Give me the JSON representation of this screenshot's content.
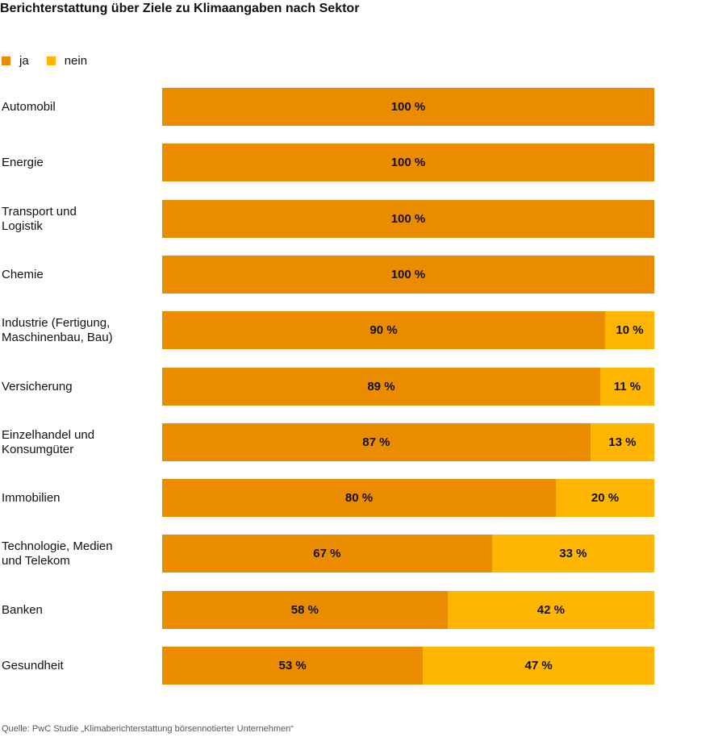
{
  "title": "Berichterstattung über Ziele zu Klimaangaben nach Sektor",
  "source": "Quelle: PwC Studie „Klimaberichterstattung börsennotierter Unternehmen“",
  "colors": {
    "ja": "#EB8C00",
    "nein": "#FFB600"
  },
  "chart_data": {
    "type": "bar",
    "orientation": "horizontal",
    "stacked": true,
    "title": "Berichterstattung über Ziele zu Klimaangaben nach Sektor",
    "legend_position": "top-left",
    "xlim": [
      0,
      100
    ],
    "categories": [
      "Automobil",
      "Energie",
      "Transport und\nLogistik",
      "Chemie",
      "Industrie (Fertigung,\nMaschinenbau, Bau)",
      "Versicherung",
      "Einzelhandel und\nKonsumgüter",
      "Immobilien",
      "Technologie, Medien\nund Telekom",
      "Banken",
      "Gesundheit"
    ],
    "series": [
      {
        "name": "ja",
        "values": [
          100,
          100,
          100,
          100,
          90,
          89,
          87,
          80,
          67,
          58,
          53
        ]
      },
      {
        "name": "nein",
        "values": [
          0,
          0,
          0,
          0,
          10,
          11,
          13,
          20,
          33,
          42,
          47
        ]
      }
    ]
  }
}
